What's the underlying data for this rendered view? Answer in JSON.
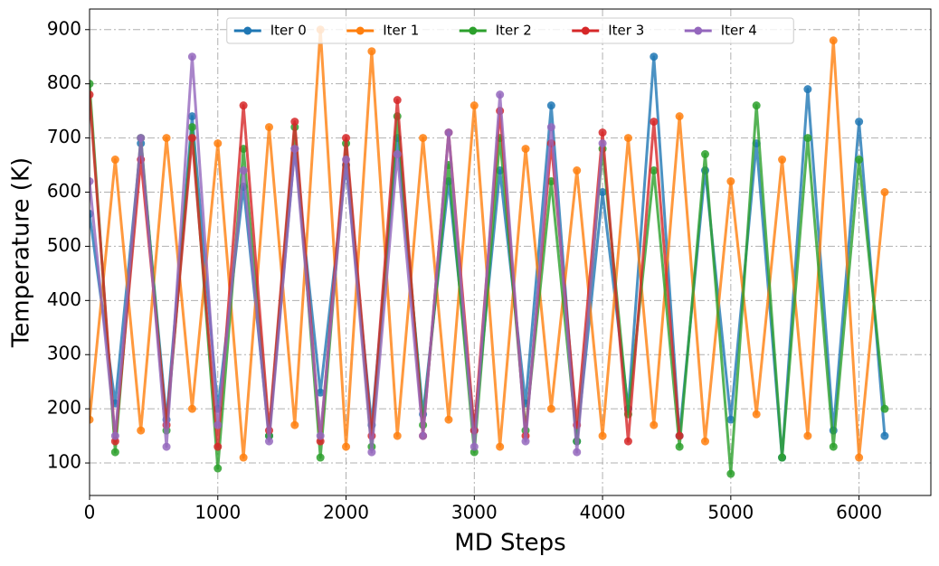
{
  "chart_data": {
    "type": "line",
    "x_label": "MD Steps",
    "y_label": "Temperature (K)",
    "x": [
      0,
      200,
      400,
      600,
      800,
      1000,
      1200,
      1400,
      1600,
      1800,
      2000,
      2200,
      2400,
      2600,
      2800,
      3000,
      3200,
      3400,
      3600,
      3800,
      4000,
      4200,
      4400,
      4600,
      4800,
      5000,
      5200,
      5400,
      5600,
      5800,
      6000,
      6200
    ],
    "series": [
      {
        "name": "Iter 0",
        "color": "#1f77b4",
        "values": [
          560,
          210,
          690,
          180,
          740,
          200,
          610,
          150,
          680,
          230,
          650,
          170,
          700,
          190,
          620,
          160,
          640,
          210,
          760,
          140,
          600,
          200,
          850,
          150,
          640,
          180,
          690,
          110,
          790,
          160,
          730,
          150
        ]
      },
      {
        "name": "Iter 1",
        "color": "#ff7f0e",
        "values": [
          180,
          660,
          160,
          700,
          200,
          690,
          110,
          720,
          170,
          900,
          130,
          860,
          150,
          700,
          180,
          760,
          130,
          680,
          200,
          640,
          150,
          700,
          170,
          740,
          140,
          620,
          190,
          660,
          150,
          880,
          110,
          600
        ]
      },
      {
        "name": "Iter 2",
        "color": "#2ca02c",
        "values": [
          800,
          120,
          700,
          160,
          720,
          90,
          680,
          150,
          720,
          110,
          690,
          130,
          740,
          170,
          650,
          120,
          700,
          160,
          620,
          140,
          680,
          190,
          640,
          130,
          670,
          80,
          760,
          110,
          700,
          130,
          660,
          200
        ]
      },
      {
        "name": "Iter 3",
        "color": "#d62728",
        "values": [
          780,
          140,
          660,
          170,
          700,
          130,
          760,
          160,
          730,
          140,
          700,
          150,
          770,
          150,
          710,
          160,
          750,
          150,
          690,
          170,
          710,
          140,
          730,
          150,
          null,
          null,
          null,
          null,
          null,
          null,
          null,
          null
        ]
      },
      {
        "name": "Iter 4",
        "color": "#9467bd",
        "values": [
          620,
          150,
          700,
          130,
          850,
          170,
          640,
          140,
          680,
          150,
          660,
          120,
          670,
          150,
          710,
          130,
          780,
          140,
          720,
          120,
          690,
          null,
          null,
          null,
          null,
          null,
          null,
          null,
          null,
          null,
          null,
          null
        ]
      }
    ],
    "xlim": [
      0,
      6560
    ],
    "ylim": [
      40,
      938
    ],
    "xticks": [
      0,
      1000,
      2000,
      3000,
      4000,
      5000,
      6000
    ],
    "yticks": [
      100,
      200,
      300,
      400,
      500,
      600,
      700,
      800,
      900
    ],
    "grid": true,
    "legend": "upper center"
  }
}
